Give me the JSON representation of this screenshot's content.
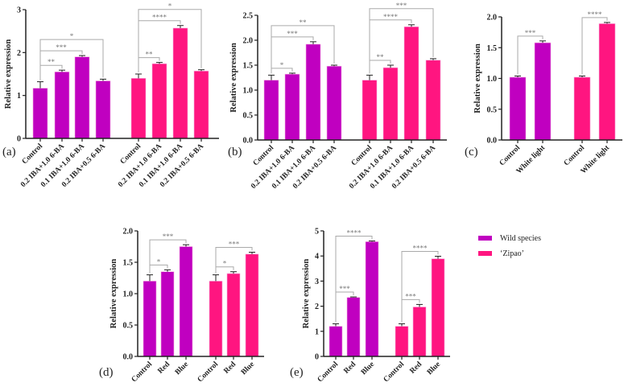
{
  "colors": {
    "wild": "#c000c0",
    "zipao": "#ff1580",
    "axis": "#222222",
    "bracket": "#aaaaaa"
  },
  "legend": [
    {
      "label": "Wild species",
      "color": "#c000c0"
    },
    {
      "label": "‘Zipao’",
      "color": "#ff1580"
    }
  ],
  "chart_data": [
    {
      "id": "a",
      "type": "bar",
      "panel_label": "(a)",
      "ylabel": "Relative expression",
      "ylim": [
        0,
        3
      ],
      "yticks": [
        "0",
        "1",
        "2",
        "3"
      ],
      "ystep": 1,
      "categories": [
        "Control",
        "0.2 IBA+1.0 6-BA",
        "0.1 IBA+1.0 6-BA",
        "0.2 IBA+0.5 6-BA"
      ],
      "series": [
        {
          "name": "Wild species",
          "values": [
            1.17,
            1.55,
            1.9,
            1.34
          ],
          "errors": [
            0.15,
            0.04,
            0.03,
            0.04
          ],
          "significance": [
            "**",
            "***",
            "*"
          ]
        },
        {
          "name": "‘Zipao’",
          "values": [
            1.4,
            1.74,
            2.57,
            1.57
          ],
          "errors": [
            0.1,
            0.03,
            0.06,
            0.03
          ],
          "significance": [
            "**",
            "****",
            "*"
          ]
        }
      ]
    },
    {
      "id": "b",
      "type": "bar",
      "panel_label": "(b)",
      "ylabel": "Relative expression",
      "ylim": [
        0,
        2.5
      ],
      "yticks": [
        "0.0",
        "0.5",
        "1.0",
        "1.5",
        "2.0",
        "2.5"
      ],
      "ystep": 0.5,
      "categories": [
        "Control",
        "0.2 IBA+1.0 6-BA",
        "0.1 IBA+1.0 6-BA",
        "0.2 IBA+0.5 6-BA"
      ],
      "series": [
        {
          "name": "Wild species",
          "values": [
            1.2,
            1.32,
            1.92,
            1.48
          ],
          "errors": [
            0.1,
            0.02,
            0.05,
            0.02
          ],
          "significance": [
            "*",
            "***",
            "**"
          ]
        },
        {
          "name": "‘Zipao’",
          "values": [
            1.2,
            1.45,
            2.27,
            1.6
          ],
          "errors": [
            0.1,
            0.05,
            0.04,
            0.03
          ],
          "significance": [
            "**",
            "****",
            "***"
          ]
        }
      ]
    },
    {
      "id": "c",
      "type": "bar",
      "panel_label": "(c)",
      "ylabel": "Relative expression",
      "ylim": [
        0,
        2.0
      ],
      "yticks": [
        "0.0",
        "0.5",
        "1.0",
        "1.5",
        "2.0"
      ],
      "ystep": 0.5,
      "categories": [
        "Control",
        "White light"
      ],
      "series": [
        {
          "name": "Wild species",
          "values": [
            1.02,
            1.58
          ],
          "errors": [
            0.02,
            0.03
          ],
          "significance": [
            "***"
          ]
        },
        {
          "name": "‘Zipao’",
          "values": [
            1.02,
            1.89
          ],
          "errors": [
            0.02,
            0.02
          ],
          "significance": [
            "****"
          ]
        }
      ]
    },
    {
      "id": "d",
      "type": "bar",
      "panel_label": "(d)",
      "ylabel": "Relative expression",
      "ylim": [
        0,
        2.0
      ],
      "yticks": [
        "0.0",
        "0.5",
        "1.0",
        "1.5",
        "2.0"
      ],
      "ystep": 0.5,
      "categories": [
        "Control",
        "Red",
        "Blue"
      ],
      "series": [
        {
          "name": "Wild species",
          "values": [
            1.2,
            1.35,
            1.75
          ],
          "errors": [
            0.1,
            0.03,
            0.03
          ],
          "significance": [
            "*",
            "***"
          ]
        },
        {
          "name": "‘Zipao’",
          "values": [
            1.2,
            1.32,
            1.63
          ],
          "errors": [
            0.1,
            0.03,
            0.03
          ],
          "significance": [
            "*",
            "***"
          ]
        }
      ]
    },
    {
      "id": "e",
      "type": "bar",
      "panel_label": "(e)",
      "ylabel": "Relative expression",
      "ylim": [
        0,
        5
      ],
      "yticks": [
        "0",
        "1",
        "2",
        "3",
        "4",
        "5"
      ],
      "ystep": 1,
      "categories": [
        "Control",
        "Red",
        "Blue"
      ],
      "series": [
        {
          "name": "Wild species",
          "values": [
            1.2,
            2.35,
            4.57
          ],
          "errors": [
            0.1,
            0.02,
            0.03
          ],
          "significance": [
            "***",
            "****"
          ]
        },
        {
          "name": "‘Zipao’",
          "values": [
            1.2,
            1.97,
            3.89
          ],
          "errors": [
            0.1,
            0.1,
            0.1
          ],
          "significance": [
            "***",
            "****"
          ]
        }
      ]
    }
  ]
}
